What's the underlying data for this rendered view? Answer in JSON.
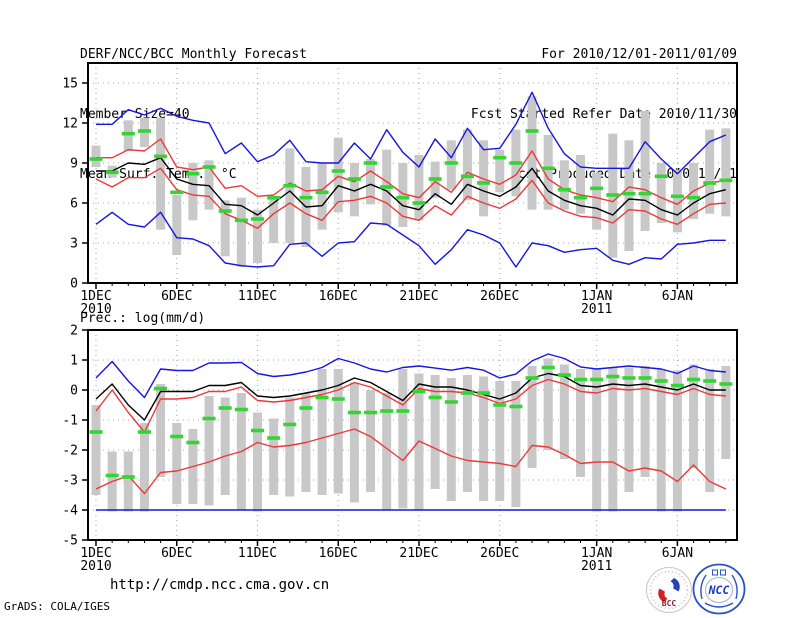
{
  "header": {
    "left_lines": [
      "DERF/NCC/BCC Monthly Forecast",
      "Member Size=40"
    ],
    "right_lines": [
      "For 2010/12/01-2011/01/09",
      "Fcst Started Refer Date 2010/11/30",
      "Fcst Produced Date 2010/12/01"
    ]
  },
  "footer": {
    "url": "http://cmdp.ncc.cma.gov.cn",
    "credit": "GrADS: COLA/IGES",
    "logos": [
      {
        "label": "BCC"
      },
      {
        "label": "NCC"
      }
    ]
  },
  "colors": {
    "blue": "#1616e0",
    "red": "#ee3838",
    "green": "#35d435",
    "black": "#000000",
    "bar": "#c8c8c8",
    "grid": "#a6a6a6",
    "frame": "#000000"
  },
  "chart_data": [
    {
      "name": "surface-temperature",
      "type": "line",
      "title": "Mean Surf. Temp.: °C",
      "ylim": [
        0,
        16.5
      ],
      "yticks": [
        0,
        3,
        6,
        9,
        12,
        15
      ],
      "grid": true,
      "x_dates": [
        "1DEC",
        "2DEC",
        "3DEC",
        "4DEC",
        "5DEC",
        "6DEC",
        "7DEC",
        "8DEC",
        "9DEC",
        "10DEC",
        "11DEC",
        "12DEC",
        "13DEC",
        "14DEC",
        "15DEC",
        "16DEC",
        "17DEC",
        "18DEC",
        "19DEC",
        "20DEC",
        "21DEC",
        "22DEC",
        "23DEC",
        "24DEC",
        "25DEC",
        "26DEC",
        "27DEC",
        "28DEC",
        "29DEC",
        "30DEC",
        "31DEC",
        "1JAN",
        "2JAN",
        "3JAN",
        "4JAN",
        "5JAN",
        "6JAN",
        "7JAN",
        "8JAN",
        "9JAN"
      ],
      "xticks": [
        {
          "i": 0,
          "label": "1DEC",
          "sub": "2010"
        },
        {
          "i": 5,
          "label": "6DEC"
        },
        {
          "i": 10,
          "label": "11DEC"
        },
        {
          "i": 15,
          "label": "16DEC"
        },
        {
          "i": 20,
          "label": "21DEC"
        },
        {
          "i": 25,
          "label": "26DEC"
        },
        {
          "i": 31,
          "label": "1JAN",
          "sub": "2011"
        },
        {
          "i": 36,
          "label": "6JAN"
        }
      ],
      "bars": {
        "low": [
          8.7,
          7.9,
          9.9,
          10.2,
          4.0,
          2.1,
          4.7,
          5.5,
          2.0,
          1.2,
          1.5,
          3.0,
          3.0,
          2.7,
          4.0,
          5.3,
          5.0,
          5.9,
          4.3,
          4.2,
          4.7,
          6.4,
          7.0,
          6.2,
          5.0,
          6.8,
          6.5,
          5.5,
          5.5,
          5.5,
          5.2,
          4.0,
          1.9,
          2.4,
          3.9,
          4.5,
          3.8,
          4.8,
          5.2,
          5.0
        ],
        "high": [
          10.3,
          8.8,
          12.2,
          12.4,
          12.4,
          6.6,
          9.0,
          9.2,
          6.2,
          6.4,
          5.5,
          6.4,
          10.1,
          8.7,
          9.0,
          10.9,
          9.0,
          9.3,
          10.0,
          9.0,
          9.6,
          9.1,
          10.7,
          11.5,
          10.7,
          10.0,
          11.5,
          14.0,
          11.1,
          9.2,
          9.6,
          8.3,
          11.2,
          10.7,
          12.9,
          9.0,
          8.5,
          9.0,
          11.5,
          11.6
        ]
      },
      "series": [
        {
          "name": "mean-plus-spread",
          "color": "red",
          "style": "line",
          "values": [
            9.4,
            9.4,
            10.0,
            9.9,
            10.8,
            8.7,
            8.5,
            8.7,
            7.1,
            7.3,
            6.5,
            6.6,
            7.5,
            6.9,
            7.0,
            8.0,
            7.6,
            8.4,
            7.6,
            6.7,
            6.4,
            7.6,
            6.8,
            8.3,
            7.8,
            7.4,
            8.1,
            9.9,
            7.8,
            7.0,
            6.6,
            6.4,
            6.1,
            7.2,
            7.0,
            6.4,
            5.9,
            6.9,
            7.5,
            7.7
          ]
        },
        {
          "name": "mean-minus-spread",
          "color": "red",
          "style": "line",
          "values": [
            7.8,
            7.2,
            7.9,
            7.9,
            8.6,
            7.0,
            6.6,
            6.5,
            5.2,
            4.7,
            4.1,
            5.2,
            6.0,
            5.2,
            4.7,
            6.1,
            6.2,
            6.5,
            6.0,
            5.0,
            4.7,
            5.8,
            5.1,
            6.5,
            6.0,
            5.6,
            6.3,
            7.7,
            6.0,
            5.4,
            5.0,
            4.9,
            4.5,
            5.5,
            5.4,
            4.8,
            4.4,
            5.2,
            5.9,
            6.0
          ]
        },
        {
          "name": "member-max",
          "color": "blue",
          "style": "line",
          "values": [
            11.9,
            11.9,
            13.0,
            12.6,
            13.1,
            12.5,
            12.2,
            12.0,
            9.7,
            10.5,
            9.1,
            9.6,
            10.7,
            9.1,
            9.0,
            9.0,
            10.5,
            9.3,
            11.5,
            9.8,
            8.7,
            10.8,
            9.4,
            11.6,
            10.0,
            10.1,
            11.9,
            14.3,
            11.6,
            9.7,
            8.7,
            8.6,
            8.6,
            8.6,
            10.6,
            9.3,
            8.2,
            9.4,
            10.6,
            11.1
          ]
        },
        {
          "name": "member-min",
          "color": "blue",
          "style": "line",
          "values": [
            4.4,
            5.3,
            4.4,
            4.2,
            5.3,
            3.4,
            3.3,
            2.8,
            1.5,
            1.3,
            1.2,
            1.3,
            2.9,
            3.0,
            2.0,
            3.0,
            3.1,
            4.5,
            4.4,
            3.6,
            2.8,
            1.4,
            2.5,
            4.0,
            3.6,
            3.0,
            1.2,
            3.0,
            2.8,
            2.3,
            2.5,
            2.6,
            1.7,
            1.4,
            1.9,
            1.8,
            2.9,
            3.0,
            3.2,
            3.2
          ]
        },
        {
          "name": "ensemble-mean",
          "color": "black",
          "style": "line",
          "values": [
            8.4,
            8.4,
            9.0,
            8.9,
            9.4,
            7.8,
            7.4,
            7.3,
            5.9,
            5.8,
            5.1,
            6.0,
            6.9,
            5.7,
            5.8,
            7.3,
            6.9,
            7.4,
            6.9,
            5.8,
            5.5,
            6.7,
            5.9,
            7.4,
            6.9,
            6.5,
            7.2,
            8.6,
            6.9,
            6.2,
            5.8,
            5.6,
            5.1,
            6.3,
            6.2,
            5.5,
            5.1,
            6.0,
            6.7,
            7.0
          ]
        },
        {
          "name": "observation",
          "color": "green",
          "style": "dash",
          "values": [
            9.3,
            8.3,
            11.2,
            11.4,
            9.5,
            6.8,
            8.2,
            8.7,
            5.4,
            4.7,
            4.8,
            6.4,
            7.3,
            6.4,
            6.8,
            8.4,
            7.8,
            9.0,
            7.2,
            6.4,
            6.0,
            7.8,
            9.0,
            8.0,
            7.5,
            9.4,
            9.0,
            11.4,
            8.6,
            7.0,
            6.4,
            7.1,
            6.6,
            6.7,
            6.7,
            8.0,
            6.5,
            6.4,
            7.5,
            7.7
          ]
        }
      ]
    },
    {
      "name": "precipitation",
      "type": "line",
      "title": "Prec.: log(mm/d)",
      "ylim": [
        -5,
        2
      ],
      "yticks": [
        2,
        1,
        0,
        -1,
        -2,
        -3,
        -4,
        -5
      ],
      "grid": true,
      "x_dates": [
        "1DEC",
        "2DEC",
        "3DEC",
        "4DEC",
        "5DEC",
        "6DEC",
        "7DEC",
        "8DEC",
        "9DEC",
        "10DEC",
        "11DEC",
        "12DEC",
        "13DEC",
        "14DEC",
        "15DEC",
        "16DEC",
        "17DEC",
        "18DEC",
        "19DEC",
        "20DEC",
        "21DEC",
        "22DEC",
        "23DEC",
        "24DEC",
        "25DEC",
        "26DEC",
        "27DEC",
        "28DEC",
        "29DEC",
        "30DEC",
        "31DEC",
        "1JAN",
        "2JAN",
        "3JAN",
        "4JAN",
        "5JAN",
        "6JAN",
        "7JAN",
        "8JAN",
        "9JAN"
      ],
      "xticks": [
        {
          "i": 0,
          "label": "1DEC",
          "sub": "2010"
        },
        {
          "i": 5,
          "label": "6DEC"
        },
        {
          "i": 10,
          "label": "11DEC"
        },
        {
          "i": 15,
          "label": "16DEC"
        },
        {
          "i": 20,
          "label": "21DEC"
        },
        {
          "i": 25,
          "label": "26DEC"
        },
        {
          "i": 31,
          "label": "1JAN",
          "sub": "2011"
        },
        {
          "i": 36,
          "label": "6JAN"
        }
      ],
      "bars": {
        "low": [
          -3.5,
          -4.05,
          -4.05,
          -4.05,
          -2.9,
          -3.8,
          -3.8,
          -3.85,
          -3.5,
          -4.0,
          -4.05,
          -3.5,
          -3.55,
          -3.4,
          -3.5,
          -3.45,
          -3.75,
          -3.4,
          -4.0,
          -3.95,
          -4.0,
          -3.3,
          -3.7,
          -3.4,
          -3.7,
          -3.7,
          -3.9,
          -2.6,
          -2.0,
          -2.3,
          -2.9,
          -4.05,
          -4.05,
          -3.4,
          -2.9,
          -4.05,
          -4.05,
          -2.6,
          -3.4,
          -2.3
        ],
        "high": [
          -0.5,
          -2.05,
          -2.05,
          -1.1,
          0.2,
          -1.1,
          -1.3,
          -0.2,
          -0.25,
          -0.1,
          -0.75,
          -0.95,
          -0.25,
          -0.1,
          0.7,
          0.7,
          0.25,
          0.0,
          -0.1,
          0.7,
          0.55,
          0.5,
          0.4,
          0.5,
          0.45,
          0.3,
          0.3,
          0.8,
          1.05,
          0.85,
          0.7,
          0.7,
          0.75,
          0.75,
          0.8,
          0.7,
          0.65,
          0.85,
          0.7,
          0.8
        ]
      },
      "series": [
        {
          "name": "mean-plus-spread",
          "color": "red",
          "style": "line",
          "values": [
            -0.7,
            0.0,
            -0.75,
            -1.4,
            -0.3,
            -0.3,
            -0.25,
            -0.05,
            -0.05,
            0.1,
            -0.35,
            -0.4,
            -0.35,
            -0.25,
            -0.15,
            0.0,
            0.25,
            0.1,
            -0.2,
            -0.5,
            0.05,
            -0.05,
            -0.05,
            -0.1,
            -0.25,
            -0.45,
            -0.3,
            0.15,
            0.35,
            0.2,
            -0.05,
            -0.1,
            0.05,
            0.0,
            0.05,
            -0.05,
            -0.15,
            0.05,
            -0.15,
            -0.2
          ]
        },
        {
          "name": "mean-minus-spread",
          "color": "red",
          "style": "line",
          "values": [
            -3.3,
            -3.05,
            -2.86,
            -3.45,
            -2.75,
            -2.7,
            -2.55,
            -2.4,
            -2.2,
            -2.05,
            -1.75,
            -1.9,
            -1.85,
            -1.75,
            -1.6,
            -1.45,
            -1.3,
            -1.55,
            -1.95,
            -2.35,
            -1.7,
            -1.95,
            -2.2,
            -2.35,
            -2.4,
            -2.45,
            -2.55,
            -1.85,
            -1.9,
            -2.15,
            -2.45,
            -2.4,
            -2.4,
            -2.7,
            -2.6,
            -2.7,
            -3.05,
            -2.5,
            -3.05,
            -3.3
          ]
        },
        {
          "name": "member-max",
          "color": "blue",
          "style": "line",
          "values": [
            0.4,
            0.95,
            0.3,
            -0.25,
            0.7,
            0.65,
            0.65,
            0.9,
            0.9,
            0.92,
            0.55,
            0.45,
            0.5,
            0.6,
            0.75,
            1.05,
            0.9,
            0.7,
            0.6,
            0.75,
            0.8,
            0.73,
            0.66,
            0.75,
            0.66,
            0.4,
            0.53,
            0.97,
            1.2,
            1.05,
            0.77,
            0.7,
            0.75,
            0.8,
            0.75,
            0.7,
            0.55,
            0.8,
            0.65,
            0.6
          ]
        },
        {
          "name": "member-min",
          "color": "blue",
          "style": "line",
          "values": [
            -4.0,
            -4.0,
            -4.0,
            -4.0,
            -4.0,
            -4.0,
            -4.0,
            -4.0,
            -4.0,
            -4.0,
            -4.0,
            -4.0,
            -4.0,
            -4.0,
            -4.0,
            -4.0,
            -4.0,
            -4.0,
            -4.0,
            -4.0,
            -4.0,
            -4.0,
            -4.0,
            -4.0,
            -4.0,
            -4.0,
            -4.0,
            -4.0,
            -4.0,
            -4.0,
            -4.0,
            -4.0,
            -4.0,
            -4.0,
            -4.0,
            -4.0,
            -4.0,
            -4.0,
            -4.0,
            -4.0
          ]
        },
        {
          "name": "ensemble-mean",
          "color": "black",
          "style": "line",
          "values": [
            -0.3,
            0.2,
            -0.5,
            -1.0,
            -0.05,
            -0.05,
            -0.05,
            0.15,
            0.15,
            0.25,
            -0.2,
            -0.25,
            -0.2,
            -0.1,
            0.0,
            0.15,
            0.4,
            0.25,
            -0.05,
            -0.35,
            0.2,
            0.1,
            0.1,
            0.0,
            -0.15,
            -0.3,
            -0.1,
            0.4,
            0.55,
            0.45,
            0.15,
            0.1,
            0.2,
            0.15,
            0.2,
            0.1,
            0.0,
            0.2,
            0.0,
            0.0
          ]
        },
        {
          "name": "observation",
          "color": "green",
          "style": "dash",
          "values": [
            -1.4,
            -2.85,
            -2.9,
            -1.4,
            0.05,
            -1.55,
            -1.75,
            -0.95,
            -0.6,
            -0.65,
            -1.35,
            -1.6,
            -1.15,
            -0.6,
            -0.25,
            -0.3,
            -0.75,
            -0.75,
            -0.7,
            -0.7,
            -0.05,
            -0.25,
            -0.4,
            -0.1,
            -0.1,
            -0.5,
            -0.55,
            0.4,
            0.75,
            0.5,
            0.35,
            0.35,
            0.45,
            0.4,
            0.4,
            0.3,
            0.15,
            0.35,
            0.3,
            0.2
          ]
        }
      ]
    }
  ]
}
